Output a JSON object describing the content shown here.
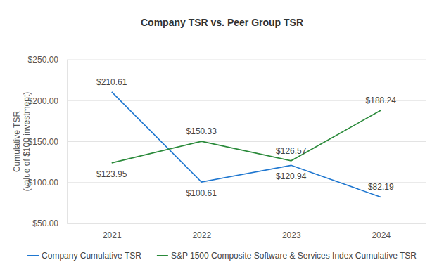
{
  "chart_data": {
    "type": "line",
    "title": "Company TSR vs. Peer Group TSR",
    "ylabel": [
      "Cumulative TSR",
      "(value of $100 investment)"
    ],
    "categories": [
      "2021",
      "2022",
      "2023",
      "2024"
    ],
    "series": [
      {
        "name": "Company Cumulative TSR",
        "color": "#1f77d0",
        "values": [
          210.61,
          100.61,
          120.94,
          82.19
        ],
        "value_labels": [
          "$210.61",
          "$100.61",
          "$120.94",
          "$82.19"
        ]
      },
      {
        "name": "S&P 1500 Composite Software & Services Index Cumulative TSR",
        "color": "#2a8a3a",
        "values": [
          123.95,
          150.33,
          126.57,
          188.24
        ],
        "value_labels": [
          "$123.95",
          "$150.33",
          "$126.57",
          "$188.24"
        ]
      }
    ],
    "ylim": [
      50,
      250
    ],
    "yticks": [
      {
        "value": 50,
        "label": "$50.00"
      },
      {
        "value": 100,
        "label": "$100.00"
      },
      {
        "value": 150,
        "label": "$150.00"
      },
      {
        "value": 200,
        "label": "$200.00"
      },
      {
        "value": 250,
        "label": "$250.00"
      }
    ],
    "grid": true,
    "data_labels": true,
    "legend": "bottom"
  }
}
